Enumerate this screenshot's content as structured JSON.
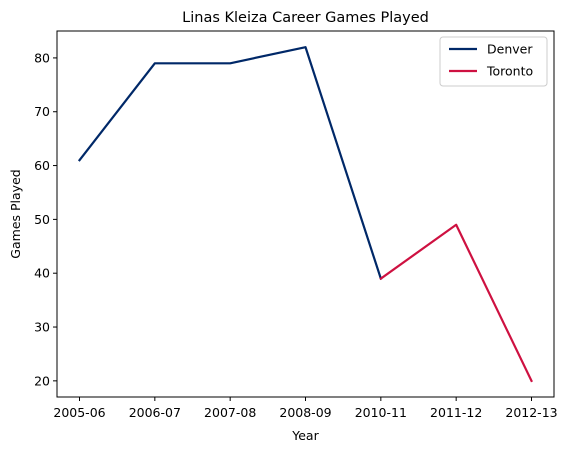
{
  "chart_data": {
    "type": "line",
    "title": "Linas Kleiza Career Games Played",
    "xlabel": "Year",
    "ylabel": "Games Played",
    "categories": [
      "2005-06",
      "2006-07",
      "2007-08",
      "2008-09",
      "2010-11",
      "2011-12",
      "2012-13"
    ],
    "ylim": [
      17,
      85
    ],
    "yticks": [
      20,
      30,
      40,
      50,
      60,
      70,
      80
    ],
    "grid": false,
    "legend_position": "top-right",
    "series": [
      {
        "name": "Denver",
        "color": "#002868",
        "points": [
          {
            "x": "2005-06",
            "y": 61
          },
          {
            "x": "2006-07",
            "y": 79
          },
          {
            "x": "2007-08",
            "y": 79
          },
          {
            "x": "2008-09",
            "y": 82
          },
          {
            "x": "2010-11",
            "y": 39
          }
        ]
      },
      {
        "name": "Toronto",
        "color": "#CE1141",
        "points": [
          {
            "x": "2010-11",
            "y": 39
          },
          {
            "x": "2011-12",
            "y": 49
          },
          {
            "x": "2012-13",
            "y": 20
          }
        ]
      }
    ]
  }
}
